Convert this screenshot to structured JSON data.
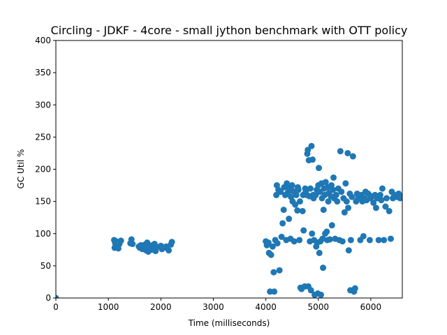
{
  "chart_data": {
    "type": "scatter",
    "title": "Circling - JDKF - 4core -  small jython benchmark with OTT policy",
    "xlabel": "Time (milliseconds)",
    "ylabel": "GC Util %",
    "xlim": [
      0,
      6600
    ],
    "ylim": [
      0,
      400
    ],
    "xticks": [
      0,
      1000,
      2000,
      3000,
      4000,
      5000,
      6000
    ],
    "yticks": [
      0,
      50,
      100,
      150,
      200,
      250,
      300,
      350,
      400
    ],
    "grid": false,
    "marker_color": "#1f77b4",
    "series": [
      {
        "points": [
          [
            0,
            0
          ],
          [
            1110,
            90
          ],
          [
            1120,
            78
          ],
          [
            1130,
            85
          ],
          [
            1150,
            88
          ],
          [
            1170,
            80
          ],
          [
            1190,
            77
          ],
          [
            1210,
            84
          ],
          [
            1240,
            89
          ],
          [
            1420,
            85
          ],
          [
            1440,
            91
          ],
          [
            1460,
            84
          ],
          [
            1580,
            80
          ],
          [
            1600,
            78
          ],
          [
            1620,
            82
          ],
          [
            1650,
            76
          ],
          [
            1680,
            79
          ],
          [
            1700,
            83
          ],
          [
            1720,
            74
          ],
          [
            1740,
            86
          ],
          [
            1760,
            72
          ],
          [
            1780,
            80
          ],
          [
            1800,
            78
          ],
          [
            1820,
            75
          ],
          [
            1840,
            82
          ],
          [
            1860,
            77
          ],
          [
            1880,
            84
          ],
          [
            1900,
            73
          ],
          [
            1920,
            79
          ],
          [
            2000,
            81
          ],
          [
            2020,
            76
          ],
          [
            2060,
            78
          ],
          [
            2100,
            80
          ],
          [
            2150,
            74
          ],
          [
            2190,
            83
          ],
          [
            2210,
            87
          ],
          [
            4000,
            88
          ],
          [
            4020,
            82
          ],
          [
            4050,
            86
          ],
          [
            4060,
            70
          ],
          [
            4080,
            10
          ],
          [
            4100,
            67
          ],
          [
            4130,
            80
          ],
          [
            4150,
            40
          ],
          [
            4160,
            10
          ],
          [
            4180,
            90
          ],
          [
            4200,
            160
          ],
          [
            4210,
            175
          ],
          [
            4220,
            85
          ],
          [
            4240,
            168
          ],
          [
            4260,
            43
          ],
          [
            4280,
            165
          ],
          [
            4300,
            95
          ],
          [
            4320,
            116
          ],
          [
            4340,
            137
          ],
          [
            4350,
            172
          ],
          [
            4370,
            160
          ],
          [
            4390,
            90
          ],
          [
            4400,
            178
          ],
          [
            4420,
            164
          ],
          [
            4440,
            123
          ],
          [
            4450,
            170
          ],
          [
            4470,
            92
          ],
          [
            4480,
            157
          ],
          [
            4500,
            175
          ],
          [
            4510,
            150
          ],
          [
            4520,
            166
          ],
          [
            4540,
            88
          ],
          [
            4560,
            145
          ],
          [
            4580,
            160
          ],
          [
            4600,
            136
          ],
          [
            4610,
            172
          ],
          [
            4620,
            168
          ],
          [
            4640,
            90
          ],
          [
            4650,
            150
          ],
          [
            4660,
            16
          ],
          [
            4680,
            14
          ],
          [
            4700,
            135
          ],
          [
            4710,
            160
          ],
          [
            4720,
            105
          ],
          [
            4740,
            18
          ],
          [
            4750,
            170
          ],
          [
            4760,
            165
          ],
          [
            4780,
            160
          ],
          [
            4790,
            224
          ],
          [
            4800,
            230
          ],
          [
            4810,
            18
          ],
          [
            4820,
            214
          ],
          [
            4830,
            158
          ],
          [
            4840,
            88
          ],
          [
            4850,
            170
          ],
          [
            4860,
            12
          ],
          [
            4870,
            236
          ],
          [
            4880,
            100
          ],
          [
            4890,
            215
          ],
          [
            4900,
            160
          ],
          [
            4910,
            155
          ],
          [
            4920,
            90
          ],
          [
            4930,
            5
          ],
          [
            4950,
            160
          ],
          [
            4960,
            80
          ],
          [
            4970,
            168
          ],
          [
            4980,
            86
          ],
          [
            4990,
            7
          ],
          [
            5000,
            175
          ],
          [
            5010,
            202
          ],
          [
            5020,
            70
          ],
          [
            5030,
            165
          ],
          [
            5040,
            88
          ],
          [
            5050,
            5
          ],
          [
            5060,
            178
          ],
          [
            5070,
            155
          ],
          [
            5080,
            92
          ],
          [
            5090,
            47
          ],
          [
            5100,
            137
          ],
          [
            5110,
            170
          ],
          [
            5120,
            160
          ],
          [
            5130,
            100
          ],
          [
            5140,
            180
          ],
          [
            5160,
            103
          ],
          [
            5170,
            90
          ],
          [
            5180,
            172
          ],
          [
            5190,
            150
          ],
          [
            5200,
            163
          ],
          [
            5220,
            91
          ],
          [
            5240,
            158
          ],
          [
            5250,
            175
          ],
          [
            5260,
            113
          ],
          [
            5280,
            168
          ],
          [
            5290,
            187
          ],
          [
            5300,
            155
          ],
          [
            5320,
            92
          ],
          [
            5340,
            160
          ],
          [
            5360,
            150
          ],
          [
            5380,
            170
          ],
          [
            5400,
            90
          ],
          [
            5420,
            228
          ],
          [
            5440,
            165
          ],
          [
            5460,
            88
          ],
          [
            5480,
            155
          ],
          [
            5500,
            133
          ],
          [
            5520,
            178
          ],
          [
            5540,
            150
          ],
          [
            5560,
            225
          ],
          [
            5570,
            140
          ],
          [
            5580,
            74
          ],
          [
            5600,
            162
          ],
          [
            5610,
            12
          ],
          [
            5620,
            90
          ],
          [
            5640,
            157
          ],
          [
            5660,
            220
          ],
          [
            5680,
            10
          ],
          [
            5700,
            15
          ],
          [
            5720,
            150
          ],
          [
            5740,
            162
          ],
          [
            5760,
            155
          ],
          [
            5780,
            158
          ],
          [
            5800,
            90
          ],
          [
            5820,
            160
          ],
          [
            5840,
            150
          ],
          [
            5860,
            96
          ],
          [
            5880,
            155
          ],
          [
            5900,
            165
          ],
          [
            5920,
            152
          ],
          [
            5950,
            162
          ],
          [
            5980,
            90
          ],
          [
            6000,
            155
          ],
          [
            6020,
            158
          ],
          [
            6050,
            148
          ],
          [
            6080,
            160
          ],
          [
            6100,
            140
          ],
          [
            6120,
            155
          ],
          [
            6150,
            90
          ],
          [
            6180,
            160
          ],
          [
            6200,
            152
          ],
          [
            6220,
            170
          ],
          [
            6250,
            90
          ],
          [
            6280,
            142
          ],
          [
            6300,
            155
          ],
          [
            6350,
            135
          ],
          [
            6380,
            92
          ],
          [
            6400,
            165
          ],
          [
            6420,
            155
          ],
          [
            6450,
            160
          ],
          [
            6500,
            157
          ],
          [
            6530,
            162
          ],
          [
            6560,
            155
          ],
          [
            6580,
            158
          ]
        ]
      }
    ]
  }
}
